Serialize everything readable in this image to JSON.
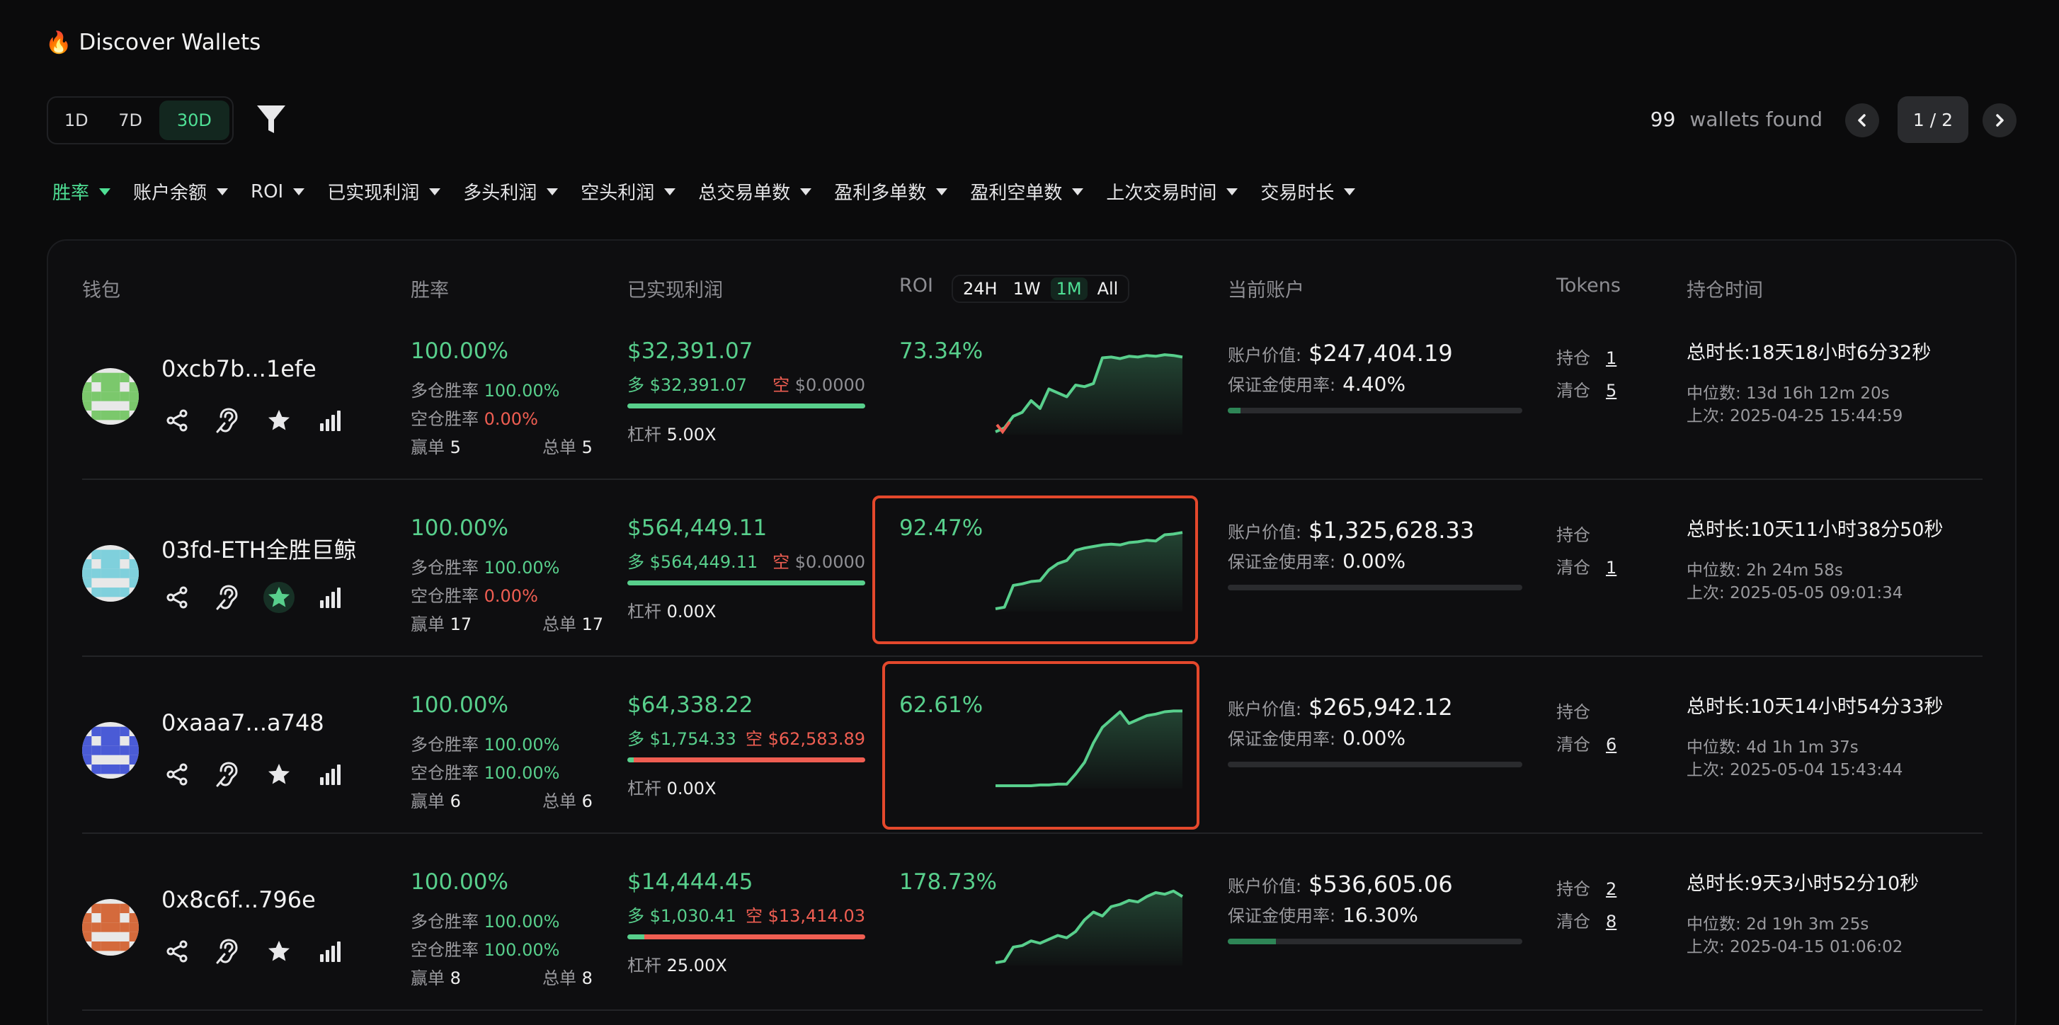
{
  "header": {
    "title": "Discover Wallets",
    "flame_icon": "🔥"
  },
  "periods": [
    {
      "label": "1D",
      "active": false
    },
    {
      "label": "7D",
      "active": false
    },
    {
      "label": "30D",
      "active": true
    }
  ],
  "found": {
    "count": "99",
    "label": "wallets found"
  },
  "pager": {
    "page": "1 / 2"
  },
  "sort": [
    "胜率",
    "账户余额",
    "ROI",
    "已实现利润",
    "多头利润",
    "空头利润",
    "总交易单数",
    "盈利多单数",
    "盈利空单数",
    "上次交易时间",
    "交易时长"
  ],
  "columns": {
    "wallet": "钱包",
    "winrate": "胜率",
    "profit": "已实现利润",
    "roi": "ROI",
    "account": "当前账户",
    "tokens": "Tokens",
    "hold": "持仓时间"
  },
  "roi_tabs": [
    {
      "label": "24H",
      "active": false
    },
    {
      "label": "1W",
      "active": false
    },
    {
      "label": "1M",
      "active": true
    },
    {
      "label": "All",
      "active": false
    }
  ],
  "labels": {
    "long_wr": "多仓胜率",
    "short_wr": "空仓胜率",
    "wins": "赢单",
    "total": "总单",
    "long": "多",
    "short": "空",
    "leverage": "杠杆",
    "acct_value": "账户价值:",
    "margin": "保证金使用率:",
    "holding": "持仓",
    "closed": "清仓",
    "total_dur": "总时长:",
    "median": "中位数:",
    "last": "上次:"
  },
  "colors": {
    "green": "#58cf8c",
    "red": "#ef5e52",
    "accent": "#4fe095",
    "highlight": "#e4482c"
  },
  "rows": [
    {
      "name": "0xcb7b...1efe",
      "avatar_color": "#7bc86c",
      "starred": false,
      "winrate": "100.00%",
      "long_wr": "100.00%",
      "short_wr": "0.00%",
      "wins": "5",
      "total": "5",
      "profit": "$32,391.07",
      "long_profit": "$32,391.07",
      "short_profit": "$0.0000",
      "leverage": "5.00X",
      "long_share": 1.0,
      "roi": "73.34%",
      "highlighted": false,
      "spark": [
        0.0,
        0.05,
        0.2,
        0.25,
        0.4,
        0.3,
        0.55,
        0.5,
        0.45,
        0.6,
        0.58,
        0.62,
        0.95,
        0.96,
        0.94,
        0.97,
        0.96,
        0.98,
        0.97,
        0.99,
        0.98,
        0.96
      ],
      "acct_value": "$247,404.19",
      "margin": "4.40%",
      "margin_frac": 0.044,
      "holding_count": "1",
      "closed_count": "5",
      "total_dur": "18天18小时6分32秒",
      "median": "13d 16h 12m 20s",
      "last": "2025-04-25 15:44:59"
    },
    {
      "name": "03fd-ETH全胜巨鲸",
      "avatar_color": "#7fd0dc",
      "starred": true,
      "winrate": "100.00%",
      "long_wr": "100.00%",
      "short_wr": "0.00%",
      "wins": "17",
      "total": "17",
      "profit": "$564,449.11",
      "long_profit": "$564,449.11",
      "short_profit": "$0.0000",
      "leverage": "0.00X",
      "long_share": 1.0,
      "roi": "92.47%",
      "highlighted": true,
      "spark": [
        0.0,
        0.02,
        0.3,
        0.32,
        0.35,
        0.36,
        0.5,
        0.58,
        0.62,
        0.75,
        0.78,
        0.8,
        0.82,
        0.83,
        0.82,
        0.85,
        0.86,
        0.88,
        0.87,
        0.95,
        0.96,
        0.98
      ],
      "acct_value": "$1,325,628.33",
      "margin": "0.00%",
      "margin_frac": 0.0,
      "holding_count": "",
      "closed_count": "1",
      "total_dur": "10天11小时38分50秒",
      "median": "2h 24m 58s",
      "last": "2025-05-05 09:01:34"
    },
    {
      "name": "0xaaa7...a748",
      "avatar_color": "#4a5bd6",
      "starred": false,
      "winrate": "100.00%",
      "long_wr": "100.00%",
      "short_wr": "100.00%",
      "wins": "6",
      "total": "6",
      "profit": "$64,338.22",
      "long_profit": "$1,754.33",
      "short_profit": "$62,583.89",
      "leverage": "0.00X",
      "long_share": 0.027,
      "roi": "62.61%",
      "highlighted": true,
      "spark": [
        0.0,
        0.0,
        0.0,
        0.0,
        0.0,
        0.01,
        0.01,
        0.02,
        0.02,
        0.15,
        0.3,
        0.55,
        0.75,
        0.85,
        0.95,
        0.8,
        0.85,
        0.9,
        0.92,
        0.95,
        0.96,
        0.96
      ],
      "acct_value": "$265,942.12",
      "margin": "0.00%",
      "margin_frac": 0.0,
      "holding_count": "",
      "closed_count": "6",
      "total_dur": "10天14小时54分33秒",
      "median": "4d 1h 1m 37s",
      "last": "2025-05-04 15:43:44"
    },
    {
      "name": "0x8c6f...796e",
      "avatar_color": "#d46a3c",
      "starred": false,
      "winrate": "100.00%",
      "long_wr": "100.00%",
      "short_wr": "100.00%",
      "wins": "8",
      "total": "8",
      "profit": "$14,444.45",
      "long_profit": "$1,030.41",
      "short_profit": "$13,414.03",
      "leverage": "25.00X",
      "long_share": 0.071,
      "roi": "178.73%",
      "highlighted": false,
      "spark": [
        0.0,
        0.02,
        0.2,
        0.22,
        0.28,
        0.25,
        0.3,
        0.35,
        0.32,
        0.4,
        0.55,
        0.65,
        0.6,
        0.72,
        0.75,
        0.8,
        0.78,
        0.85,
        0.9,
        0.88,
        0.92,
        0.85
      ],
      "acct_value": "$536,605.06",
      "margin": "16.30%",
      "margin_frac": 0.163,
      "holding_count": "2",
      "closed_count": "8",
      "total_dur": "9天3小时52分10秒",
      "median": "2d 19h 3m 25s",
      "last": "2025-04-15 01:06:02"
    }
  ]
}
